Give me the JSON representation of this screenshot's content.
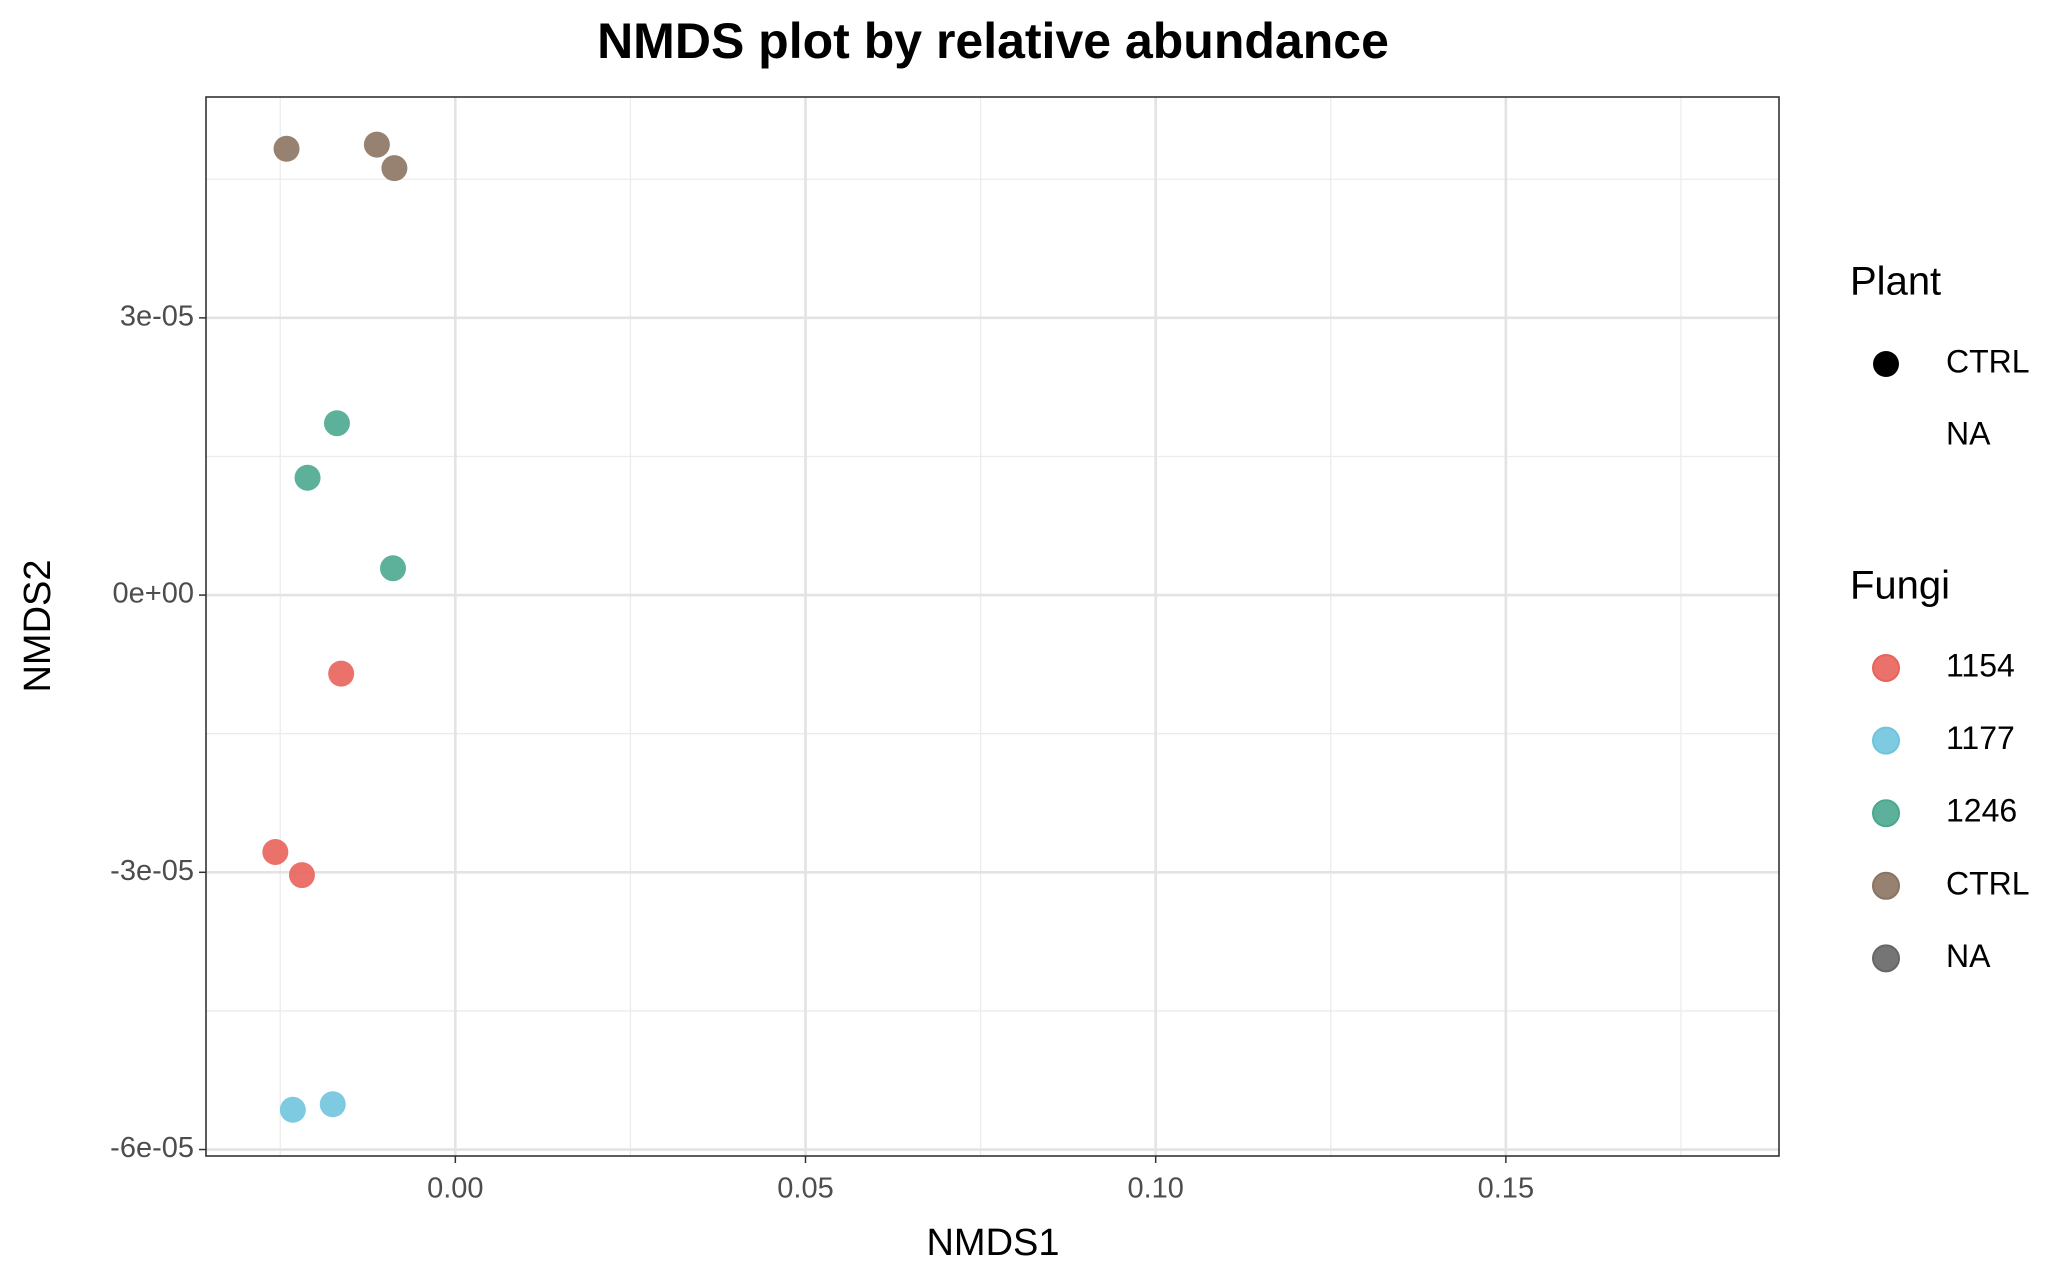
{
  "chart_data": {
    "type": "scatter",
    "title": "NMDS plot by relative abundance",
    "x_label": "NMDS1",
    "y_label": "NMDS2",
    "xlim": [
      -0.0356,
      0.189
    ],
    "ylim": [
      -6.07e-05,
      5.39e-05
    ],
    "xticks": [
      {
        "value": 0,
        "label": "0.00"
      },
      0.05,
      {
        "value": 0.1,
        "label": "0.10"
      },
      0.15
    ],
    "yticks": [
      {
        "value": -6e-05,
        "label": "-6e-05"
      },
      {
        "value": -3e-05,
        "label": "-3e-05"
      },
      {
        "value": 0,
        "label": "0e+00"
      },
      {
        "value": 3e-05,
        "label": "3e-05"
      }
    ],
    "grid": true,
    "shape_legend": {
      "title": "Plant",
      "entries": [
        "CTRL",
        "NA"
      ]
    },
    "legend_title": "Fungi",
    "series": [
      {
        "name": "1154",
        "color": "#e8635a",
        "x": [
          -0.0163,
          -0.0257,
          -0.0219
        ],
        "y": [
          -8.5e-06,
          -2.78e-05,
          -3.03e-05
        ]
      },
      {
        "name": "1177",
        "color": "#70c4de",
        "x": [
          -0.0232,
          -0.0175
        ],
        "y": [
          -5.57e-05,
          -5.51e-05
        ]
      },
      {
        "name": "1246",
        "color": "#4ba88f",
        "x": [
          -0.0169,
          -0.0211,
          -0.0089
        ],
        "y": [
          1.86e-05,
          1.27e-05,
          2.9e-06
        ]
      },
      {
        "name": "CTRL",
        "color": "#8c7462",
        "x": [
          -0.0241,
          -0.0112,
          -0.0087
        ],
        "y": [
          4.83e-05,
          4.875e-05,
          4.62e-05
        ]
      },
      {
        "name": "NA",
        "color": "#666666",
        "x": [],
        "y": []
      }
    ]
  }
}
